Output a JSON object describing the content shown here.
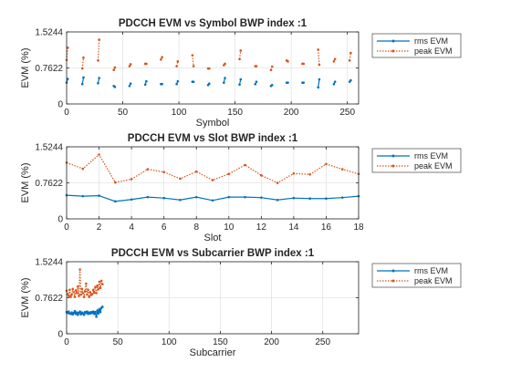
{
  "colors": {
    "rms": "#0072BD",
    "peak": "#D95319",
    "grid": "#e3e3e3",
    "axis": "#262626"
  },
  "chart_data": [
    {
      "type": "line",
      "title": "PDCCH EVM vs Symbol BWP index :1",
      "xlabel": "Symbol",
      "ylabel": "EVM (%)",
      "xlim": [
        0,
        260
      ],
      "ylim": [
        0,
        1.5244
      ],
      "xticks": [
        0,
        50,
        100,
        150,
        200,
        250
      ],
      "yticks": [
        0,
        0.7622,
        1.5244
      ],
      "ytick_labels": [
        "0",
        "0.7622",
        "1.5244"
      ],
      "grid": true,
      "legend_position": "outside-right",
      "series": [
        {
          "name": "rms EVM",
          "style": "solid-dot",
          "segments": [
            [
              [
                0,
                0.45
              ],
              [
                1,
                0.53
              ]
            ],
            [
              [
                14,
                0.42
              ],
              [
                15,
                0.56
              ]
            ],
            [
              [
                28,
                0.44
              ],
              [
                29,
                0.55
              ]
            ],
            [
              [
                42,
                0.38
              ],
              [
                43,
                0.36
              ]
            ],
            [
              [
                56,
                0.38
              ],
              [
                57,
                0.43
              ]
            ],
            [
              [
                70,
                0.41
              ],
              [
                71,
                0.48
              ]
            ],
            [
              [
                84,
                0.42
              ],
              [
                85,
                0.42
              ]
            ],
            [
              [
                98,
                0.42
              ],
              [
                99,
                0.48
              ]
            ],
            [
              [
                112,
                0.47
              ],
              [
                113,
                0.47
              ]
            ],
            [
              [
                126,
                0.4
              ],
              [
                127,
                0.43
              ]
            ],
            [
              [
                140,
                0.45
              ],
              [
                141,
                0.55
              ]
            ],
            [
              [
                154,
                0.41
              ],
              [
                155,
                0.52
              ]
            ],
            [
              [
                168,
                0.42
              ],
              [
                169,
                0.47
              ]
            ],
            [
              [
                182,
                0.38
              ],
              [
                183,
                0.4
              ]
            ],
            [
              [
                196,
                0.45
              ],
              [
                197,
                0.45
              ]
            ],
            [
              [
                210,
                0.45
              ],
              [
                211,
                0.45
              ]
            ],
            [
              [
                224,
                0.35
              ],
              [
                225,
                0.52
              ]
            ],
            [
              [
                238,
                0.42
              ],
              [
                239,
                0.47
              ]
            ],
            [
              [
                252,
                0.47
              ],
              [
                253,
                0.5
              ]
            ]
          ]
        },
        {
          "name": "peak EVM",
          "style": "dotted-dot",
          "segments": [
            [
              [
                0,
                0.93
              ],
              [
                1,
                1.19
              ]
            ],
            [
              [
                14,
                0.75
              ],
              [
                15,
                0.98
              ]
            ],
            [
              [
                28,
                0.92
              ],
              [
                29,
                1.36
              ]
            ],
            [
              [
                42,
                0.72
              ],
              [
                43,
                0.77
              ]
            ],
            [
              [
                56,
                0.8
              ],
              [
                57,
                0.84
              ]
            ],
            [
              [
                70,
                0.85
              ],
              [
                71,
                0.85
              ]
            ],
            [
              [
                84,
                0.94
              ],
              [
                85,
                0.99
              ]
            ],
            [
              [
                98,
                0.8
              ],
              [
                99,
                0.9
              ]
            ],
            [
              [
                112,
                1.03
              ],
              [
                113,
                0.8
              ]
            ],
            [
              [
                126,
                0.75
              ],
              [
                127,
                0.75
              ]
            ],
            [
              [
                140,
                0.82
              ],
              [
                141,
                0.85
              ]
            ],
            [
              [
                154,
                0.95
              ],
              [
                155,
                1.13
              ]
            ],
            [
              [
                168,
                0.8
              ],
              [
                169,
                0.8
              ]
            ],
            [
              [
                182,
                0.72
              ],
              [
                183,
                0.79
              ]
            ],
            [
              [
                196,
                0.92
              ],
              [
                197,
                0.9
              ]
            ],
            [
              [
                210,
                0.85
              ],
              [
                211,
                0.85
              ]
            ],
            [
              [
                224,
                1.15
              ],
              [
                225,
                0.83
              ]
            ],
            [
              [
                238,
                0.9
              ],
              [
                239,
                0.95
              ]
            ],
            [
              [
                252,
                0.92
              ],
              [
                253,
                1.08
              ]
            ]
          ]
        }
      ]
    },
    {
      "type": "line",
      "title": "PDCCH EVM vs Slot BWP index :1",
      "xlabel": "Slot",
      "ylabel": "EVM (%)",
      "xlim": [
        0,
        18
      ],
      "ylim": [
        0,
        1.5244
      ],
      "xticks": [
        0,
        2,
        4,
        6,
        8,
        10,
        12,
        14,
        16,
        18
      ],
      "yticks": [
        0,
        0.7622,
        1.5244
      ],
      "ytick_labels": [
        "0",
        "0.7622",
        "1.5244"
      ],
      "grid": true,
      "legend_position": "outside-right",
      "series": [
        {
          "name": "rms EVM",
          "style": "solid-dot",
          "segments": [
            [
              [
                0,
                0.5
              ],
              [
                1,
                0.48
              ],
              [
                2,
                0.49
              ],
              [
                3,
                0.37
              ],
              [
                4,
                0.41
              ],
              [
                5,
                0.46
              ],
              [
                6,
                0.44
              ],
              [
                7,
                0.4
              ],
              [
                8,
                0.46
              ],
              [
                9,
                0.39
              ],
              [
                10,
                0.46
              ],
              [
                11,
                0.46
              ],
              [
                12,
                0.45
              ],
              [
                13,
                0.4
              ],
              [
                14,
                0.44
              ],
              [
                15,
                0.43
              ],
              [
                16,
                0.43
              ],
              [
                17,
                0.45
              ],
              [
                18,
                0.48
              ]
            ]
          ]
        },
        {
          "name": "peak EVM",
          "style": "dotted-dot",
          "segments": [
            [
              [
                0,
                1.19
              ],
              [
                1,
                1.06
              ],
              [
                2,
                1.36
              ],
              [
                3,
                0.77
              ],
              [
                4,
                0.84
              ],
              [
                5,
                1.05
              ],
              [
                6,
                0.99
              ],
              [
                7,
                0.85
              ],
              [
                8,
                1.0
              ],
              [
                9,
                0.82
              ],
              [
                10,
                0.95
              ],
              [
                11,
                1.14
              ],
              [
                12,
                0.92
              ],
              [
                13,
                0.76
              ],
              [
                14,
                0.96
              ],
              [
                15,
                0.94
              ],
              [
                16,
                1.16
              ],
              [
                17,
                1.05
              ],
              [
                18,
                0.95
              ]
            ]
          ]
        }
      ]
    },
    {
      "type": "line",
      "title": "PDCCH EVM vs Subcarrier BWP index :1",
      "xlabel": "Subcarrier",
      "ylabel": "EVM (%)",
      "xlim": [
        0,
        285
      ],
      "ylim": [
        0,
        1.5244
      ],
      "xticks": [
        0,
        50,
        100,
        150,
        200,
        250
      ],
      "yticks": [
        0,
        0.7622,
        1.5244
      ],
      "ytick_labels": [
        "0",
        "0.7622",
        "1.5244"
      ],
      "grid": true,
      "legend_position": "outside-right",
      "series": [
        {
          "name": "rms EVM",
          "style": "solid-dot",
          "segments": [
            [
              [
                0,
                0.46
              ],
              [
                1,
                0.44
              ],
              [
                2,
                0.47
              ],
              [
                3,
                0.43
              ],
              [
                4,
                0.42
              ],
              [
                5,
                0.45
              ],
              [
                6,
                0.41
              ],
              [
                7,
                0.44
              ],
              [
                8,
                0.48
              ],
              [
                9,
                0.42
              ],
              [
                10,
                0.45
              ],
              [
                11,
                0.4
              ],
              [
                12,
                0.44
              ],
              [
                13,
                0.47
              ],
              [
                14,
                0.41
              ],
              [
                15,
                0.45
              ],
              [
                16,
                0.43
              ],
              [
                17,
                0.4
              ],
              [
                18,
                0.46
              ],
              [
                19,
                0.44
              ],
              [
                20,
                0.47
              ],
              [
                21,
                0.42
              ],
              [
                22,
                0.45
              ],
              [
                23,
                0.43
              ],
              [
                24,
                0.46
              ],
              [
                25,
                0.44
              ],
              [
                26,
                0.47
              ],
              [
                27,
                0.42
              ],
              [
                28,
                0.46
              ],
              [
                29,
                0.36
              ],
              [
                30,
                0.49
              ],
              [
                31,
                0.43
              ],
              [
                32,
                0.52
              ],
              [
                33,
                0.46
              ],
              [
                34,
                0.55
              ],
              [
                35,
                0.57
              ]
            ]
          ]
        },
        {
          "name": "peak EVM",
          "style": "dotted-dot",
          "segments": [
            [
              [
                0,
                0.91
              ],
              [
                1,
                0.84
              ],
              [
                2,
                0.8
              ],
              [
                3,
                0.93
              ],
              [
                4,
                0.78
              ],
              [
                5,
                0.83
              ],
              [
                6,
                0.95
              ],
              [
                7,
                0.88
              ],
              [
                8,
                0.78
              ],
              [
                9,
                0.92
              ],
              [
                10,
                0.86
              ],
              [
                11,
                1.0
              ],
              [
                12,
                0.8
              ],
              [
                13,
                1.36
              ],
              [
                14,
                0.83
              ],
              [
                15,
                0.95
              ],
              [
                16,
                0.86
              ],
              [
                17,
                0.78
              ],
              [
                18,
                0.9
              ],
              [
                19,
                1.06
              ],
              [
                20,
                0.83
              ],
              [
                21,
                0.93
              ],
              [
                22,
                0.78
              ],
              [
                23,
                0.88
              ],
              [
                24,
                0.82
              ],
              [
                25,
                0.84
              ],
              [
                26,
                0.93
              ],
              [
                27,
                0.87
              ],
              [
                28,
                0.99
              ],
              [
                29,
                0.86
              ],
              [
                30,
                1.02
              ],
              [
                31,
                0.94
              ],
              [
                32,
                1.1
              ],
              [
                33,
                0.97
              ],
              [
                34,
                1.12
              ],
              [
                35,
                1.05
              ]
            ]
          ]
        }
      ]
    }
  ]
}
